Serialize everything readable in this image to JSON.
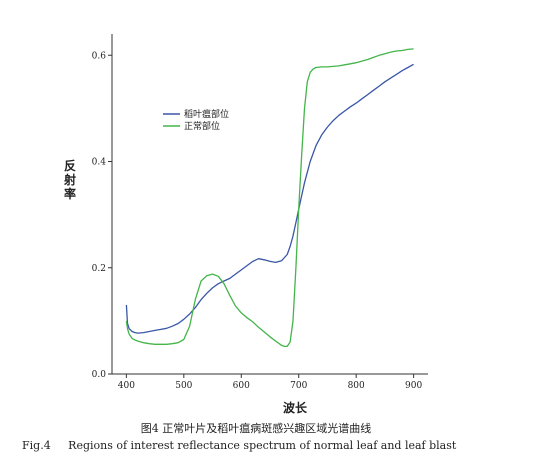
{
  "chart_data": {
    "type": "line",
    "xlabel": "波长",
    "ylabel": "反射率",
    "xlim": [
      375,
      925
    ],
    "ylim": [
      0,
      0.64
    ],
    "xticks": [
      400,
      500,
      600,
      700,
      800,
      900
    ],
    "yticks": [
      0.0,
      0.2,
      0.4,
      0.6
    ],
    "ytick_labels": [
      "0.0",
      "0.2",
      "0.4",
      "0.6"
    ],
    "grid": false,
    "legend": "upper-left",
    "series": [
      {
        "name": "稻叶瘟部位",
        "color": "#3a57a7",
        "x": [
          400,
          402,
          405,
          408,
          410,
          415,
          420,
          430,
          440,
          450,
          460,
          470,
          480,
          490,
          500,
          510,
          520,
          530,
          540,
          550,
          560,
          570,
          580,
          590,
          600,
          610,
          620,
          630,
          640,
          650,
          660,
          670,
          680,
          685,
          690,
          695,
          700,
          705,
          710,
          720,
          730,
          740,
          750,
          760,
          770,
          780,
          790,
          800,
          810,
          820,
          830,
          840,
          850,
          860,
          870,
          880,
          890,
          900
        ],
        "y": [
          0.13,
          0.095,
          0.085,
          0.082,
          0.08,
          0.078,
          0.077,
          0.078,
          0.08,
          0.082,
          0.084,
          0.086,
          0.09,
          0.095,
          0.103,
          0.113,
          0.125,
          0.14,
          0.152,
          0.162,
          0.17,
          0.175,
          0.18,
          0.188,
          0.196,
          0.204,
          0.212,
          0.217,
          0.215,
          0.212,
          0.21,
          0.213,
          0.225,
          0.24,
          0.26,
          0.285,
          0.31,
          0.335,
          0.36,
          0.4,
          0.43,
          0.45,
          0.465,
          0.477,
          0.487,
          0.495,
          0.503,
          0.51,
          0.518,
          0.526,
          0.534,
          0.542,
          0.55,
          0.557,
          0.564,
          0.571,
          0.577,
          0.583
        ]
      },
      {
        "name": "正常部位",
        "color": "#43b54a",
        "x": [
          400,
          402,
          405,
          408,
          410,
          415,
          420,
          430,
          440,
          450,
          460,
          470,
          480,
          490,
          500,
          510,
          520,
          530,
          540,
          550,
          560,
          570,
          580,
          590,
          600,
          610,
          620,
          630,
          640,
          650,
          660,
          670,
          675,
          680,
          685,
          690,
          695,
          700,
          705,
          710,
          715,
          720,
          725,
          730,
          740,
          750,
          760,
          770,
          780,
          790,
          800,
          810,
          820,
          830,
          840,
          850,
          860,
          870,
          880,
          890,
          900
        ],
        "y": [
          0.1,
          0.085,
          0.075,
          0.07,
          0.067,
          0.064,
          0.062,
          0.059,
          0.057,
          0.056,
          0.056,
          0.056,
          0.057,
          0.059,
          0.065,
          0.09,
          0.14,
          0.175,
          0.185,
          0.188,
          0.184,
          0.17,
          0.148,
          0.128,
          0.115,
          0.106,
          0.098,
          0.088,
          0.079,
          0.07,
          0.062,
          0.054,
          0.052,
          0.052,
          0.06,
          0.1,
          0.2,
          0.31,
          0.41,
          0.5,
          0.55,
          0.568,
          0.574,
          0.577,
          0.578,
          0.578,
          0.579,
          0.58,
          0.582,
          0.584,
          0.586,
          0.589,
          0.592,
          0.596,
          0.6,
          0.603,
          0.606,
          0.608,
          0.609,
          0.611,
          0.612
        ]
      }
    ]
  },
  "caption_cn": "图4  正常叶片及稻叶瘟病斑感兴趣区域光谱曲线",
  "caption_en": "Fig.4     Regions of interest reflectance spectrum of normal leaf and leaf blast"
}
